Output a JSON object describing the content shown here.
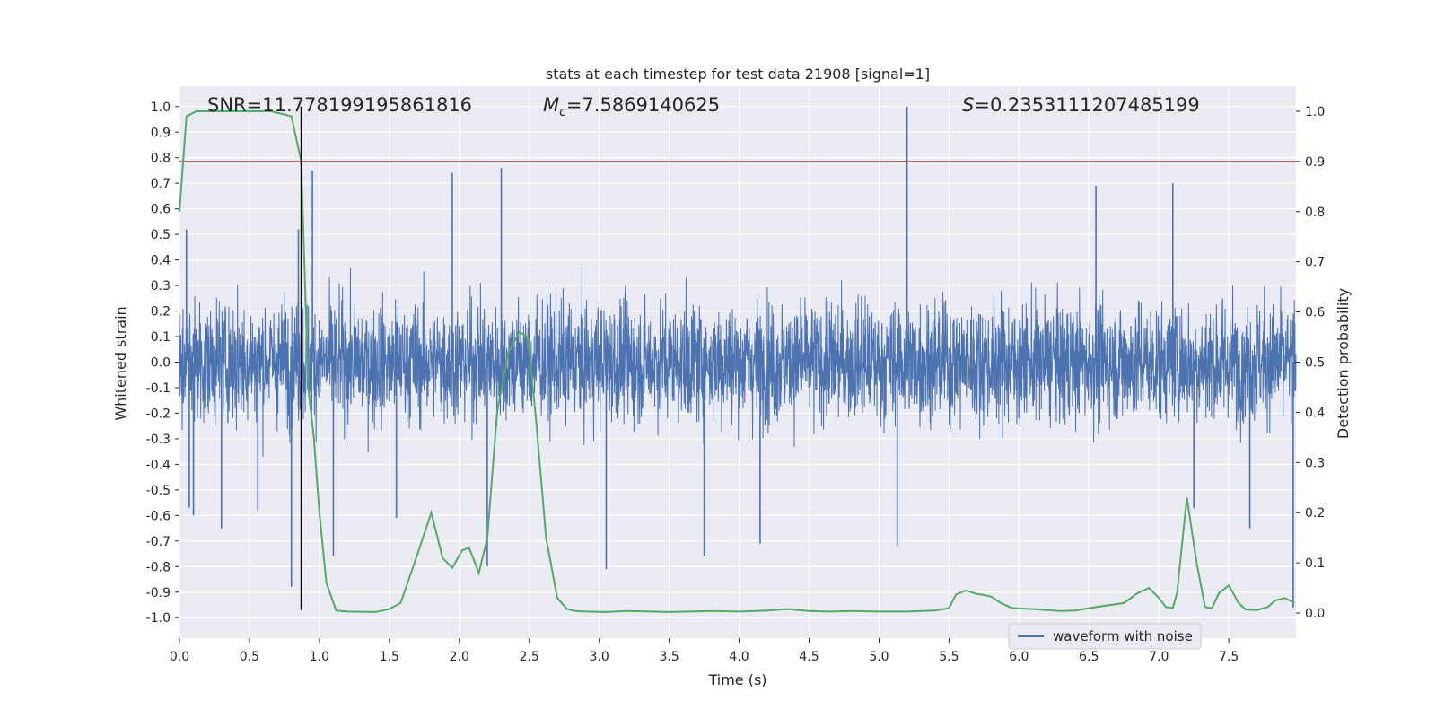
{
  "chart_data": {
    "type": "line",
    "title": "stats at each timestep for test data 21908 [signal=1]",
    "xlabel": "Time (s)",
    "ylabel_left": "Whitened strain",
    "ylabel_right": "Detection probability",
    "xlim": [
      0.0,
      7.98
    ],
    "ylim_left": [
      -1.08,
      1.08
    ],
    "ylim_right": [
      -0.05,
      1.05
    ],
    "x_ticks": [
      "0.0",
      "0.5",
      "1.0",
      "1.5",
      "2.0",
      "2.5",
      "3.0",
      "3.5",
      "4.0",
      "4.5",
      "5.0",
      "5.5",
      "6.0",
      "6.5",
      "7.0",
      "7.5"
    ],
    "y_ticks_left": [
      "-1.0",
      "-0.9",
      "-0.8",
      "-0.7",
      "-0.6",
      "-0.5",
      "-0.4",
      "-0.3",
      "-0.2",
      "-0.1",
      "0.0",
      "0.1",
      "0.2",
      "0.3",
      "0.4",
      "0.5",
      "0.6",
      "0.7",
      "0.8",
      "0.9",
      "1.0"
    ],
    "y_ticks_right": [
      "0.0",
      "0.1",
      "0.2",
      "0.3",
      "0.4",
      "0.5",
      "0.6",
      "0.7",
      "0.8",
      "0.9",
      "1.0"
    ],
    "annotations": {
      "snr": "SNR=11.778199195861816",
      "mc_symbol": "M",
      "mc_sub": "c",
      "mc_value": "=7.5869140625",
      "s_symbol": "S",
      "s_value": "=0.2353111207485199"
    },
    "threshold": {
      "value": 0.9,
      "axis": "right",
      "color": "#c44e52"
    },
    "vertical_marker": {
      "x": 0.87,
      "color": "#000000"
    },
    "legend": {
      "label": "waveform with noise",
      "placement": "bottom-right"
    },
    "series": [
      {
        "name": "waveform with noise",
        "axis": "left",
        "color": "#4c72b0",
        "style": "dense noise",
        "typical_amplitude": 0.33,
        "spike_extremes": [
          {
            "x": 0.05,
            "y": 0.52
          },
          {
            "x": 0.07,
            "y": -0.57
          },
          {
            "x": 0.1,
            "y": -0.6
          },
          {
            "x": 0.3,
            "y": -0.65
          },
          {
            "x": 0.56,
            "y": -0.58
          },
          {
            "x": 0.8,
            "y": -0.88
          },
          {
            "x": 0.85,
            "y": 0.52
          },
          {
            "x": 0.95,
            "y": 0.75
          },
          {
            "x": 1.1,
            "y": -0.76
          },
          {
            "x": 1.55,
            "y": -0.61
          },
          {
            "x": 1.95,
            "y": 0.74
          },
          {
            "x": 2.2,
            "y": -0.8
          },
          {
            "x": 2.3,
            "y": 0.76
          },
          {
            "x": 3.05,
            "y": -0.81
          },
          {
            "x": 3.75,
            "y": -0.76
          },
          {
            "x": 4.15,
            "y": -0.71
          },
          {
            "x": 5.2,
            "y": 1.0
          },
          {
            "x": 5.13,
            "y": -0.72
          },
          {
            "x": 6.55,
            "y": 0.69
          },
          {
            "x": 7.1,
            "y": 0.7
          },
          {
            "x": 7.25,
            "y": -0.57
          },
          {
            "x": 7.65,
            "y": -0.65
          },
          {
            "x": 7.96,
            "y": -0.96
          }
        ]
      },
      {
        "name": "detection probability",
        "axis": "right",
        "color": "#55a868",
        "x": [
          0.0,
          0.05,
          0.12,
          0.3,
          0.5,
          0.65,
          0.73,
          0.8,
          0.87,
          0.92,
          0.96,
          1.0,
          1.05,
          1.12,
          1.2,
          1.4,
          1.5,
          1.58,
          1.68,
          1.8,
          1.88,
          1.95,
          2.02,
          2.07,
          2.14,
          2.2,
          2.27,
          2.35,
          2.43,
          2.49,
          2.55,
          2.62,
          2.7,
          2.77,
          2.83,
          2.9,
          3.05,
          3.2,
          3.5,
          3.8,
          4.0,
          4.2,
          4.35,
          4.5,
          4.65,
          4.8,
          5.0,
          5.2,
          5.4,
          5.5,
          5.55,
          5.62,
          5.7,
          5.75,
          5.8,
          5.87,
          5.95,
          6.1,
          6.3,
          6.4,
          6.55,
          6.75,
          6.85,
          6.93,
          7.0,
          7.05,
          7.1,
          7.13,
          7.2,
          7.27,
          7.33,
          7.38,
          7.43,
          7.5,
          7.57,
          7.62,
          7.7,
          7.78,
          7.83,
          7.9,
          7.97
        ],
        "y": [
          0.8,
          0.99,
          1.0,
          1.0,
          1.0,
          1.0,
          0.995,
          0.99,
          0.9,
          0.45,
          0.35,
          0.2,
          0.06,
          0.005,
          0.003,
          0.002,
          0.008,
          0.02,
          0.1,
          0.2,
          0.11,
          0.09,
          0.125,
          0.13,
          0.08,
          0.15,
          0.4,
          0.52,
          0.56,
          0.55,
          0.38,
          0.15,
          0.03,
          0.008,
          0.004,
          0.003,
          0.002,
          0.004,
          0.002,
          0.004,
          0.003,
          0.005,
          0.008,
          0.004,
          0.003,
          0.004,
          0.003,
          0.003,
          0.005,
          0.01,
          0.037,
          0.045,
          0.038,
          0.036,
          0.033,
          0.02,
          0.01,
          0.008,
          0.004,
          0.005,
          0.012,
          0.02,
          0.04,
          0.05,
          0.03,
          0.012,
          0.01,
          0.04,
          0.23,
          0.1,
          0.012,
          0.01,
          0.04,
          0.055,
          0.02,
          0.007,
          0.006,
          0.012,
          0.025,
          0.03,
          0.02
        ]
      }
    ]
  }
}
